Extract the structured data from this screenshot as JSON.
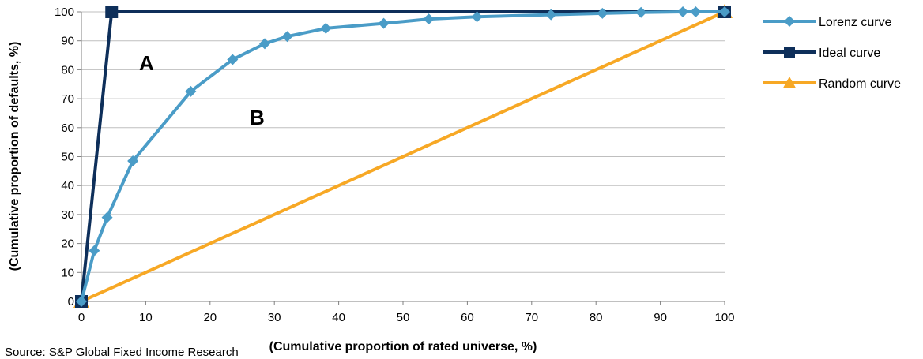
{
  "chart_data": {
    "type": "line",
    "xlabel": "(Cumulative proportion of rated universe, %)",
    "ylabel": "(Cumulative proportion of defaults, %)",
    "xlim": [
      0,
      100
    ],
    "ylim": [
      0,
      100
    ],
    "xticks": [
      0,
      10,
      20,
      30,
      40,
      50,
      60,
      70,
      80,
      90,
      100
    ],
    "yticks": [
      0,
      10,
      20,
      30,
      40,
      50,
      60,
      70,
      80,
      90,
      100
    ],
    "grid": "horizontal",
    "legend_position": "right",
    "annotations": [
      "A",
      "B"
    ],
    "source_note": "Source: S&P Global Fixed Income Research",
    "series": [
      {
        "name": "Lorenz curve",
        "color": "#4a9cc7",
        "marker": "diamond",
        "x": [
          0,
          2,
          4,
          8,
          17,
          23.5,
          28.5,
          32,
          38,
          47,
          54,
          61.5,
          73,
          81,
          87,
          93.5,
          95.5,
          100
        ],
        "y": [
          0,
          17.5,
          29,
          48.5,
          72.5,
          83.5,
          89,
          91.5,
          94.3,
          96,
          97.5,
          98.3,
          99,
          99.5,
          99.8,
          100,
          100,
          100
        ]
      },
      {
        "name": "Ideal curve",
        "color": "#0e2f5a",
        "marker": "square",
        "x": [
          0,
          4.7,
          100
        ],
        "y": [
          0,
          100,
          100
        ]
      },
      {
        "name": "Random curve",
        "color": "#f7a825",
        "marker": "triangle",
        "x": [
          0,
          100
        ],
        "y": [
          0,
          100
        ]
      }
    ]
  }
}
